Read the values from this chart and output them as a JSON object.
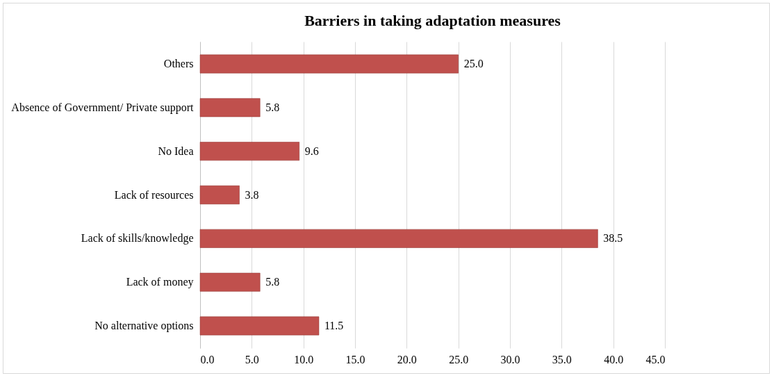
{
  "chart_data": {
    "type": "bar",
    "orientation": "horizontal",
    "title": "Barriers in taking adaptation measures",
    "categories": [
      "Others",
      "Absence of Government/ Private support",
      "No Idea",
      "Lack of resources",
      "Lack of skills/knowledge",
      "Lack of money",
      "No alternative options"
    ],
    "values": [
      25.0,
      5.8,
      9.6,
      3.8,
      38.5,
      5.8,
      11.5
    ],
    "value_labels": [
      "25.0",
      "5.8",
      "9.6",
      "3.8",
      "38.5",
      "5.8",
      "11.5"
    ],
    "color": "#c0504d",
    "xlim": [
      0,
      45
    ],
    "xticks": [
      {
        "value": 0,
        "label": "0.0"
      },
      {
        "value": 5,
        "label": "5.0"
      },
      {
        "value": 10,
        "label": "10.0"
      },
      {
        "value": 15,
        "label": "15.0"
      },
      {
        "value": 20,
        "label": "20.0"
      },
      {
        "value": 25,
        "label": "25.0"
      },
      {
        "value": 30,
        "label": "30.0"
      },
      {
        "value": 35,
        "label": "35.0"
      },
      {
        "value": 40,
        "label": "40.0"
      },
      {
        "value": 45,
        "label": "45.0"
      }
    ],
    "grid": "x"
  }
}
